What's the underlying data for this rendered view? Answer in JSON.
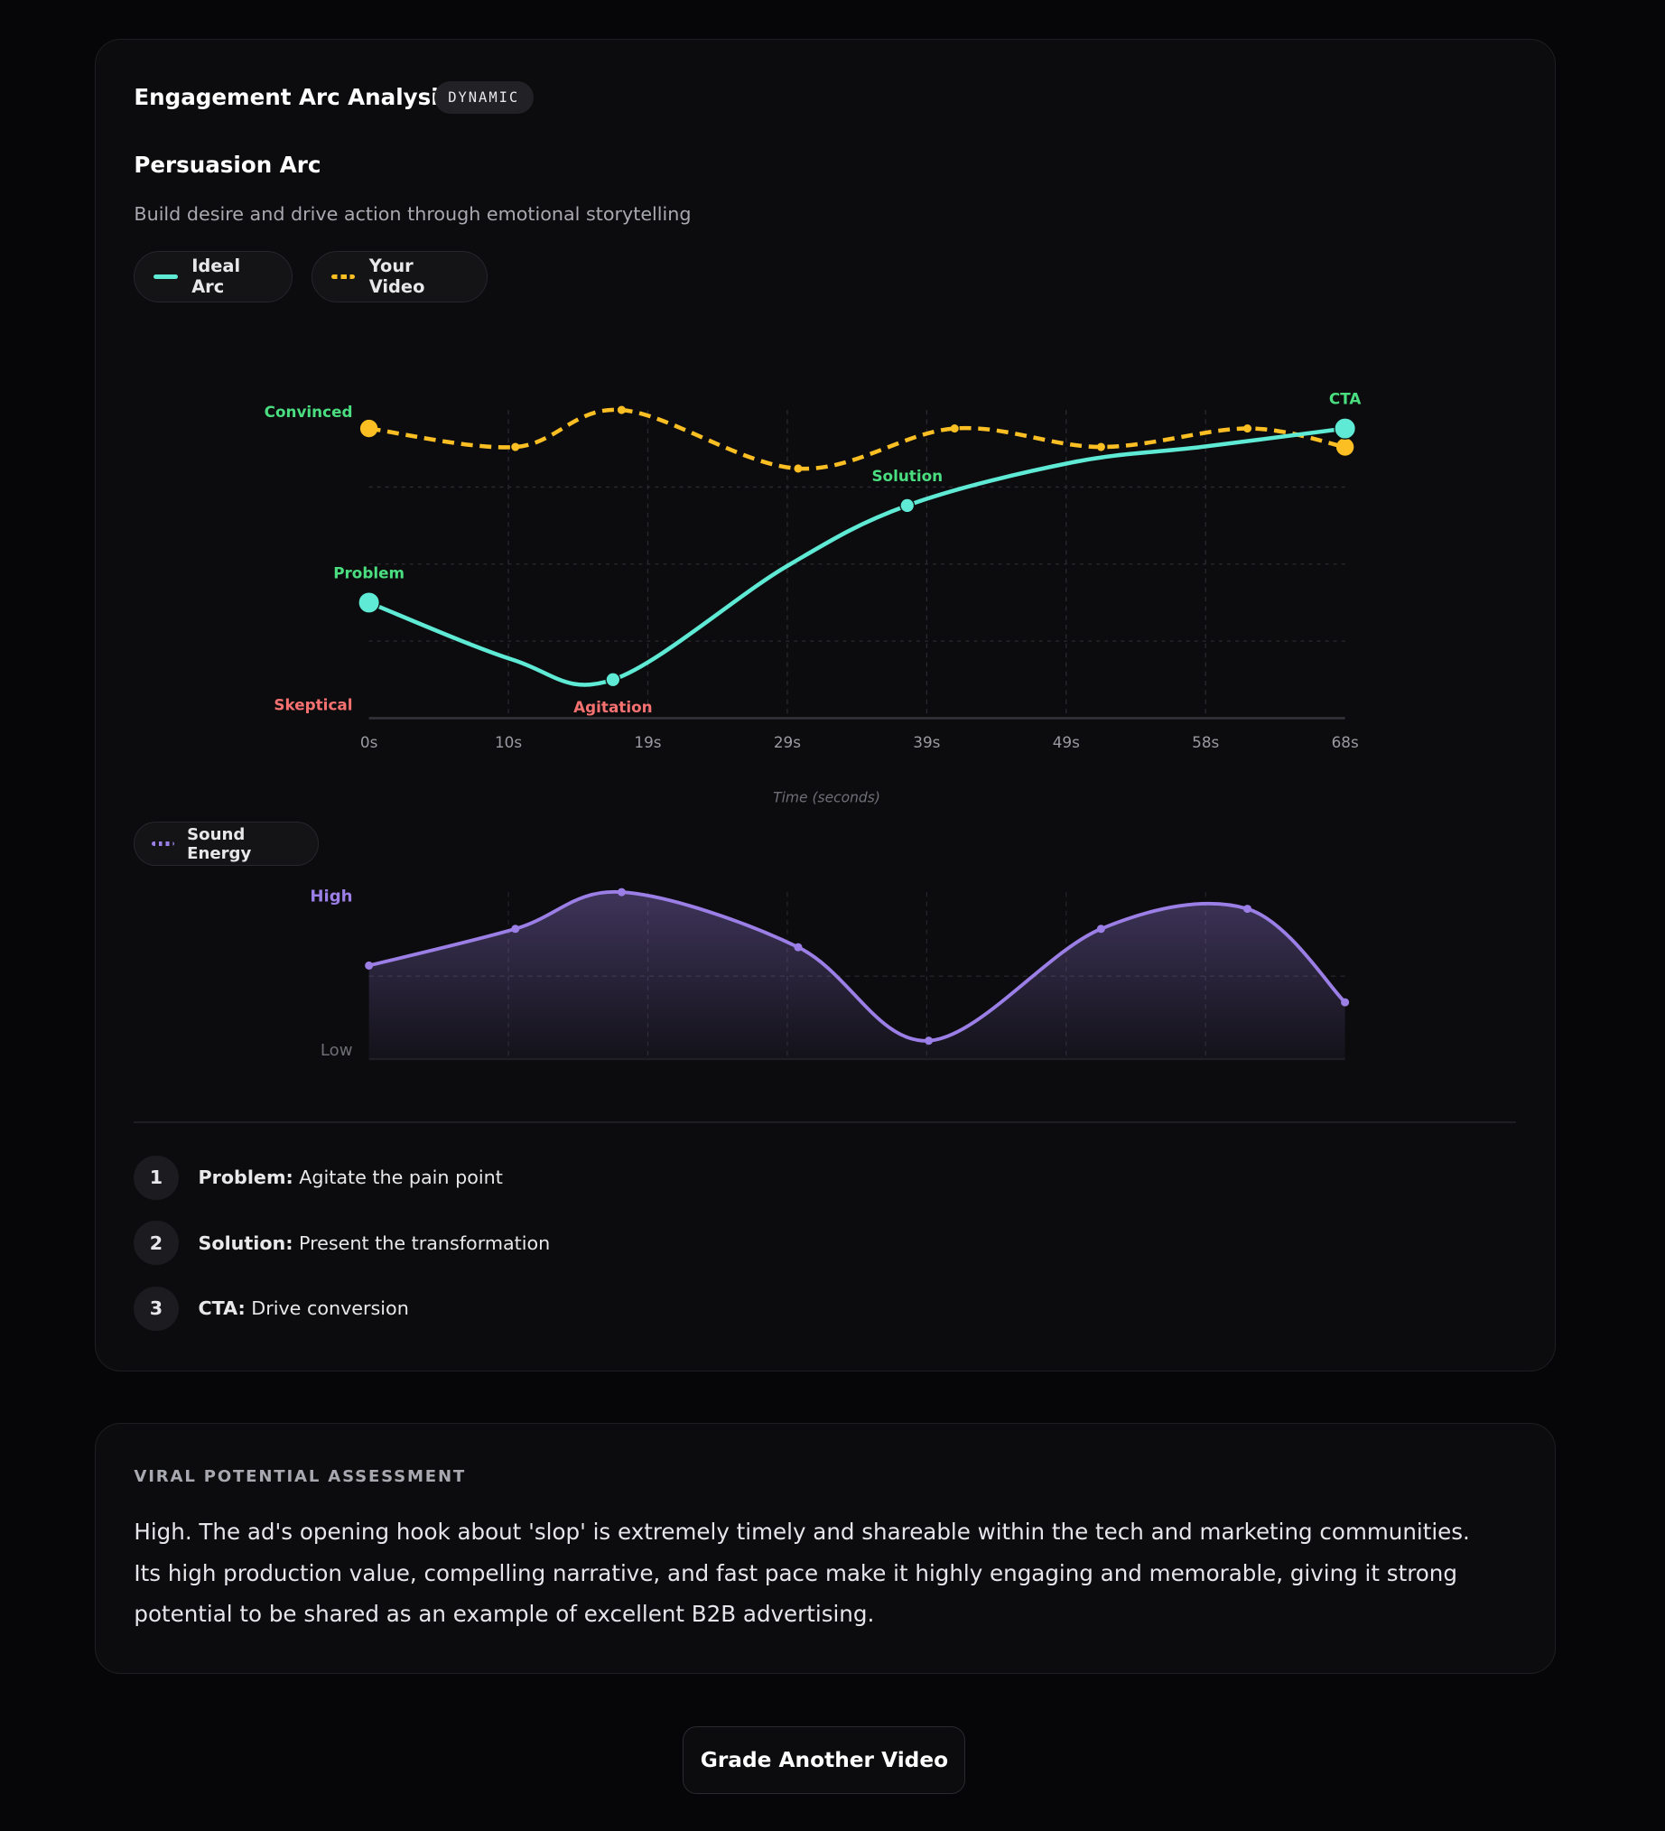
{
  "header": {
    "title": "Engagement Arc Analysis",
    "badge": "DYNAMIC"
  },
  "arc": {
    "title": "Persuasion Arc",
    "description": "Build desire and drive action through emotional storytelling"
  },
  "legend": {
    "ideal": "Ideal Arc",
    "video": "Your Video",
    "sound": "Sound Energy"
  },
  "colors": {
    "ideal": "#5eead4",
    "video": "#fbbf24",
    "sound": "#9b7fe6",
    "positive_label": "#4ade80",
    "negative_label": "#f87171"
  },
  "chart_data": [
    {
      "type": "line",
      "xlabel": "Time (seconds)",
      "x_ticks": [
        "0s",
        "10s",
        "19s",
        "29s",
        "39s",
        "49s",
        "58s",
        "68s"
      ],
      "xlim": [
        0,
        68
      ],
      "ylim": [
        0,
        100
      ],
      "y_labels": {
        "top": "Convinced",
        "bottom": "Skeptical"
      },
      "grid": true,
      "series": [
        {
          "name": "Ideal Arc",
          "style": "solid",
          "points": [
            [
              0,
              37.5
            ],
            [
              10,
              19
            ],
            [
              17,
              12.5
            ],
            [
              29,
              49
            ],
            [
              37.5,
              69
            ],
            [
              49,
              83
            ],
            [
              58,
              88
            ],
            [
              68,
              94
            ]
          ],
          "markers": [
            {
              "t": 0,
              "v": 37.5,
              "label": "Problem",
              "tone": "positive",
              "size": "large"
            },
            {
              "t": 17,
              "v": 12.5,
              "label": "Agitation",
              "tone": "negative",
              "size": "small"
            },
            {
              "t": 37.5,
              "v": 69,
              "label": "Solution",
              "tone": "positive",
              "size": "small"
            },
            {
              "t": 68,
              "v": 94,
              "label": "CTA",
              "tone": "positive",
              "size": "large"
            }
          ]
        },
        {
          "name": "Your Video",
          "style": "dashed",
          "points": [
            [
              0,
              94
            ],
            [
              10.2,
              88
            ],
            [
              17.6,
              100
            ],
            [
              29.9,
              81
            ],
            [
              40.8,
              94
            ],
            [
              51,
              88
            ],
            [
              61.2,
              94
            ],
            [
              68,
              88
            ]
          ]
        }
      ]
    },
    {
      "type": "area",
      "name": "Sound Energy",
      "xlim": [
        0,
        68
      ],
      "ylim": [
        0,
        100
      ],
      "y_labels": {
        "top": "High",
        "bottom": "Low"
      },
      "points": [
        [
          0,
          56
        ],
        [
          10.2,
          78
        ],
        [
          17.6,
          100
        ],
        [
          29.9,
          67
        ],
        [
          39,
          11
        ],
        [
          51,
          78
        ],
        [
          61.2,
          90
        ],
        [
          68,
          34
        ]
      ]
    }
  ],
  "steps": [
    {
      "num": "1",
      "label": "Problem:",
      "text": "Agitate the pain point"
    },
    {
      "num": "2",
      "label": "Solution:",
      "text": "Present the transformation"
    },
    {
      "num": "3",
      "label": "CTA:",
      "text": "Drive conversion"
    }
  ],
  "viral": {
    "heading": "VIRAL POTENTIAL ASSESSMENT",
    "text": "High. The ad's opening hook about 'slop' is extremely timely and shareable within the tech and marketing communities. Its high production value, compelling narrative, and fast pace make it highly engaging and memorable, giving it strong potential to be shared as an example of excellent B2B advertising."
  },
  "actions": {
    "grade_another": "Grade Another Video"
  }
}
